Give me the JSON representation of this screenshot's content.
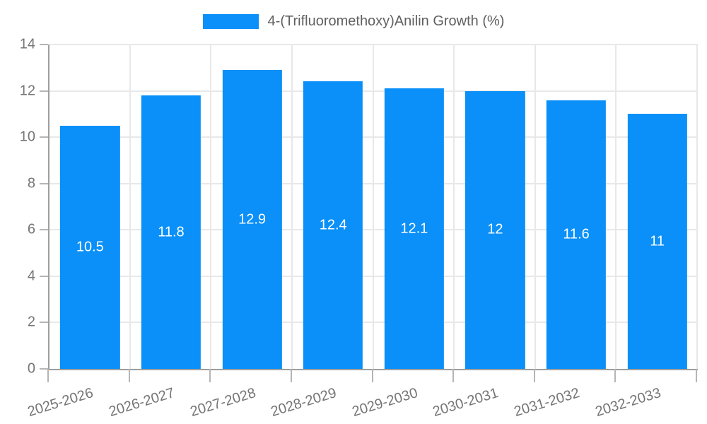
{
  "legend": {
    "label": "4-(Trifluoromethoxy)Anilin Growth (%)"
  },
  "chart_data": {
    "type": "bar",
    "categories": [
      "2025-2026",
      "2026-2027",
      "2027-2028",
      "2028-2029",
      "2029-2030",
      "2030-2031",
      "2031-2032",
      "2032-2033"
    ],
    "series": [
      {
        "name": "4-(Trifluoromethoxy)Anilin Growth (%)",
        "values": [
          10.5,
          11.8,
          12.9,
          12.4,
          12.1,
          12,
          11.6,
          11
        ]
      }
    ],
    "value_labels": [
      "10.5",
      "11.8",
      "12.9",
      "12.4",
      "12.1",
      "12",
      "11.6",
      "11"
    ],
    "title": "",
    "xlabel": "",
    "ylabel": "",
    "ylim": [
      0,
      14
    ],
    "yticks": [
      0,
      2,
      4,
      6,
      8,
      10,
      12,
      14
    ],
    "grid": true,
    "legend_position": "top",
    "x_tick_rotation_deg": -17
  },
  "colors": {
    "bar": "#0a90f8",
    "grid": "#e8e8e8",
    "axis": "#9e9e9e",
    "tick_mark": "#b5b5b5",
    "tick_label": "#757575",
    "legend_text": "#606060",
    "value_label": "#ffffff",
    "background": "#ffffff"
  }
}
